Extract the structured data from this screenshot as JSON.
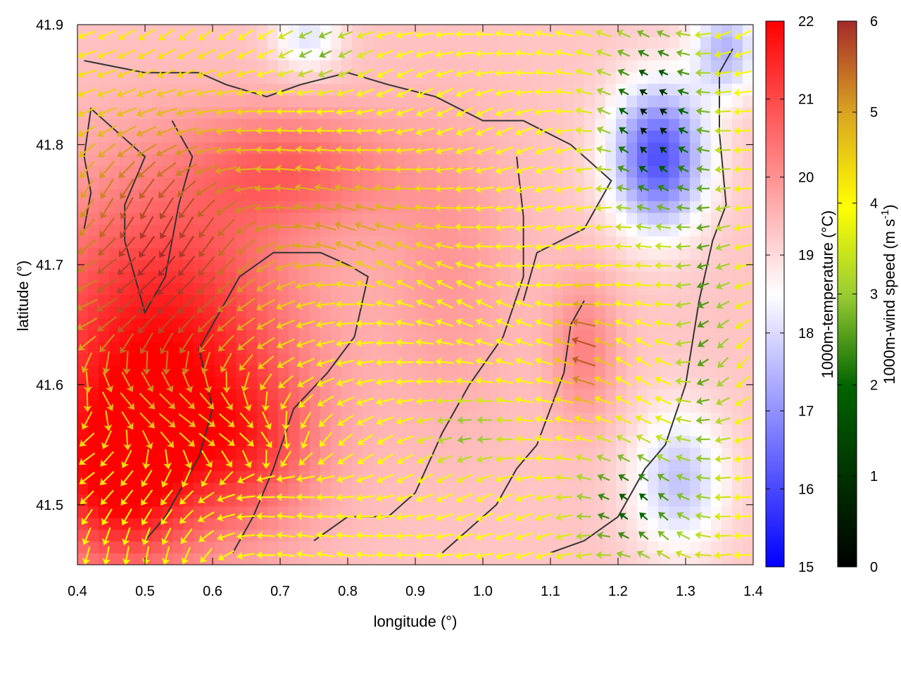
{
  "chart_data": {
    "type": "heatmap",
    "title": "",
    "xlabel": "longitude (°)",
    "ylabel": "latitude (°)",
    "xlim": [
      0.4,
      1.4
    ],
    "ylim": [
      41.45,
      41.9
    ],
    "xticks": [
      0.4,
      0.5,
      0.6,
      0.7,
      0.8,
      0.9,
      1.0,
      1.1,
      1.2,
      1.3,
      1.4
    ],
    "xtick_labels": [
      "0.4",
      "0.5",
      "0.6",
      "0.7",
      "0.8",
      "0.9",
      "1.0",
      "1.1",
      "1.2",
      "1.3",
      "1.4"
    ],
    "yticks": [
      41.5,
      41.6,
      41.7,
      41.8,
      41.9
    ],
    "ytick_labels": [
      "41.5",
      "41.6",
      "41.7",
      "41.8",
      "41.9"
    ],
    "grid": false,
    "temperature_colorbar": {
      "label": "1000m-temperature (°C)",
      "range": [
        15,
        22
      ],
      "ticks": [
        15,
        16,
        17,
        18,
        19,
        20,
        21,
        22
      ],
      "tick_labels": [
        "15",
        "16",
        "17",
        "18",
        "19",
        "20",
        "21",
        "22"
      ],
      "colors": [
        "#0000ff",
        "#ffffff",
        "#ff0000"
      ]
    },
    "wind_colorbar": {
      "label_main": "1000m-wind speed (m s",
      "label_sup": "-1",
      "label_end": ")",
      "range": [
        0,
        6
      ],
      "ticks": [
        0,
        1,
        2,
        3,
        4,
        5,
        6
      ],
      "tick_labels": [
        "0",
        "1",
        "2",
        "3",
        "4",
        "5",
        "6"
      ],
      "colors": [
        "#000000",
        "#006400",
        "#9acd32",
        "#ffff00",
        "#daa520",
        "#a52a2a"
      ]
    },
    "temperature_field": {
      "base": 19.3,
      "centers": [
        {
          "lon": 0.52,
          "lat": 41.62,
          "amp": 2.6,
          "rx": 0.2,
          "ry": 0.14
        },
        {
          "lon": 0.46,
          "lat": 41.52,
          "amp": 1.8,
          "rx": 0.1,
          "ry": 0.07
        },
        {
          "lon": 0.72,
          "lat": 41.78,
          "amp": 1.2,
          "rx": 0.16,
          "ry": 0.05
        },
        {
          "lon": 0.65,
          "lat": 41.55,
          "amp": 1.0,
          "rx": 0.1,
          "ry": 0.06
        },
        {
          "lon": 1.26,
          "lat": 41.79,
          "amp": -3.2,
          "rx": 0.07,
          "ry": 0.06
        },
        {
          "lon": 1.36,
          "lat": 41.88,
          "amp": -1.8,
          "rx": 0.05,
          "ry": 0.04
        },
        {
          "lon": 1.29,
          "lat": 41.52,
          "amp": -1.6,
          "rx": 0.07,
          "ry": 0.06
        },
        {
          "lon": 0.74,
          "lat": 41.89,
          "amp": -1.2,
          "rx": 0.05,
          "ry": 0.03
        },
        {
          "lon": 1.15,
          "lat": 41.63,
          "amp": 0.9,
          "rx": 0.05,
          "ry": 0.06
        },
        {
          "lon": 0.95,
          "lat": 41.7,
          "amp": 0.6,
          "rx": 0.1,
          "ry": 0.12
        }
      ]
    },
    "wind_field": {
      "speed_base": 3.6,
      "speed_centers": [
        {
          "lon": 0.52,
          "lat": 41.7,
          "amp": 2.4,
          "rx": 0.16,
          "ry": 0.13
        },
        {
          "lon": 0.8,
          "lat": 41.74,
          "amp": 1.2,
          "rx": 0.14,
          "ry": 0.05
        },
        {
          "lon": 1.15,
          "lat": 41.63,
          "amp": 2.0,
          "rx": 0.03,
          "ry": 0.05
        },
        {
          "lon": 1.25,
          "lat": 41.82,
          "amp": -3.4,
          "rx": 0.07,
          "ry": 0.08
        },
        {
          "lon": 1.33,
          "lat": 41.65,
          "amp": -1.8,
          "rx": 0.04,
          "ry": 0.15
        },
        {
          "lon": 1.22,
          "lat": 41.5,
          "amp": -2.6,
          "rx": 0.08,
          "ry": 0.05
        },
        {
          "lon": 0.76,
          "lat": 41.88,
          "amp": -1.6,
          "rx": 0.06,
          "ry": 0.03
        },
        {
          "lon": 0.98,
          "lat": 41.56,
          "amp": -1.4,
          "rx": 0.06,
          "ry": 0.03
        }
      ]
    },
    "terrain_contours": [
      [
        [
          0.41,
          41.73
        ],
        [
          0.42,
          41.76
        ],
        [
          0.41,
          41.79
        ],
        [
          0.42,
          41.83
        ],
        [
          0.5,
          41.79
        ],
        [
          0.47,
          41.75
        ],
        [
          0.47,
          41.72
        ],
        [
          0.5,
          41.66
        ],
        [
          0.53,
          41.69
        ],
        [
          0.55,
          41.75
        ],
        [
          0.57,
          41.79
        ],
        [
          0.54,
          41.82
        ]
      ],
      [
        [
          0.41,
          41.87
        ],
        [
          0.5,
          41.86
        ],
        [
          0.58,
          41.86
        ],
        [
          0.62,
          41.85
        ],
        [
          0.68,
          41.84
        ],
        [
          0.73,
          41.85
        ],
        [
          0.8,
          41.86
        ],
        [
          0.86,
          41.85
        ],
        [
          0.93,
          41.84
        ],
        [
          1.0,
          41.82
        ],
        [
          1.06,
          41.82
        ],
        [
          1.13,
          41.8
        ],
        [
          1.19,
          41.77
        ],
        [
          1.15,
          41.73
        ],
        [
          1.08,
          41.71
        ],
        [
          1.06,
          41.67
        ]
      ],
      [
        [
          0.5,
          41.47
        ],
        [
          0.53,
          41.49
        ],
        [
          0.58,
          41.54
        ],
        [
          0.6,
          41.58
        ],
        [
          0.58,
          41.63
        ],
        [
          0.64,
          41.69
        ],
        [
          0.69,
          41.71
        ],
        [
          0.76,
          41.71
        ],
        [
          0.8,
          41.7
        ],
        [
          0.83,
          41.69
        ],
        [
          0.81,
          41.64
        ],
        [
          0.77,
          41.61
        ],
        [
          0.72,
          41.58
        ],
        [
          0.69,
          41.53
        ],
        [
          0.66,
          41.49
        ],
        [
          0.63,
          41.46
        ]
      ],
      [
        [
          0.75,
          41.47
        ],
        [
          0.8,
          41.49
        ],
        [
          0.86,
          41.49
        ],
        [
          0.9,
          41.51
        ],
        [
          0.94,
          41.56
        ],
        [
          0.98,
          41.6
        ],
        [
          1.03,
          41.64
        ],
        [
          1.06,
          41.69
        ],
        [
          1.06,
          41.74
        ],
        [
          1.05,
          41.79
        ]
      ],
      [
        [
          1.1,
          41.46
        ],
        [
          1.15,
          41.47
        ],
        [
          1.2,
          41.49
        ],
        [
          1.22,
          41.51
        ],
        [
          1.24,
          41.53
        ],
        [
          1.27,
          41.55
        ],
        [
          1.3,
          41.6
        ],
        [
          1.32,
          41.67
        ],
        [
          1.34,
          41.72
        ],
        [
          1.36,
          41.75
        ],
        [
          1.35,
          41.81
        ],
        [
          1.35,
          41.86
        ],
        [
          1.37,
          41.88
        ]
      ],
      [
        [
          0.94,
          41.46
        ],
        [
          0.98,
          41.48
        ],
        [
          1.02,
          41.5
        ],
        [
          1.05,
          41.53
        ],
        [
          1.08,
          41.55
        ],
        [
          1.1,
          41.58
        ],
        [
          1.12,
          41.61
        ],
        [
          1.13,
          41.65
        ],
        [
          1.15,
          41.67
        ]
      ]
    ]
  }
}
